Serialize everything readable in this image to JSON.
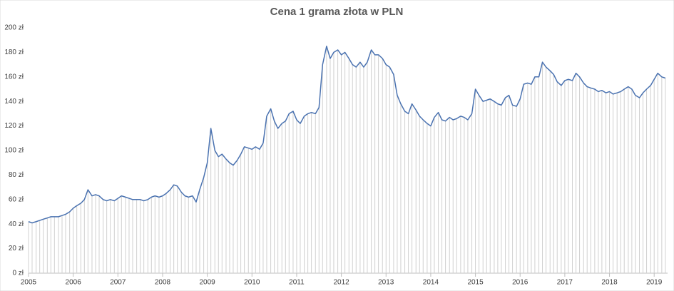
{
  "chart_data": {
    "type": "line",
    "title": "Cena 1 grama złota w PLN",
    "x": [
      2005,
      2005.08,
      2005.17,
      2005.25,
      2005.33,
      2005.42,
      2005.5,
      2005.58,
      2005.67,
      2005.75,
      2005.83,
      2005.92,
      2006,
      2006.08,
      2006.17,
      2006.25,
      2006.33,
      2006.42,
      2006.5,
      2006.58,
      2006.67,
      2006.75,
      2006.83,
      2006.92,
      2007,
      2007.08,
      2007.17,
      2007.25,
      2007.33,
      2007.42,
      2007.5,
      2007.58,
      2007.67,
      2007.75,
      2007.83,
      2007.92,
      2008,
      2008.08,
      2008.17,
      2008.25,
      2008.33,
      2008.42,
      2008.5,
      2008.58,
      2008.67,
      2008.75,
      2008.83,
      2008.92,
      2009,
      2009.08,
      2009.17,
      2009.25,
      2009.33,
      2009.42,
      2009.5,
      2009.58,
      2009.67,
      2009.75,
      2009.83,
      2009.92,
      2010,
      2010.08,
      2010.17,
      2010.25,
      2010.33,
      2010.42,
      2010.5,
      2010.58,
      2010.67,
      2010.75,
      2010.83,
      2010.92,
      2011,
      2011.08,
      2011.17,
      2011.25,
      2011.33,
      2011.42,
      2011.5,
      2011.58,
      2011.67,
      2011.75,
      2011.83,
      2011.92,
      2012,
      2012.08,
      2012.17,
      2012.25,
      2012.33,
      2012.42,
      2012.5,
      2012.58,
      2012.67,
      2012.75,
      2012.83,
      2012.92,
      2013,
      2013.08,
      2013.17,
      2013.25,
      2013.33,
      2013.42,
      2013.5,
      2013.58,
      2013.67,
      2013.75,
      2013.83,
      2013.92,
      2014,
      2014.08,
      2014.17,
      2014.25,
      2014.33,
      2014.42,
      2014.5,
      2014.58,
      2014.67,
      2014.75,
      2014.83,
      2014.92,
      2015,
      2015.08,
      2015.17,
      2015.25,
      2015.33,
      2015.42,
      2015.5,
      2015.58,
      2015.67,
      2015.75,
      2015.83,
      2015.92,
      2016,
      2016.08,
      2016.17,
      2016.25,
      2016.33,
      2016.42,
      2016.5,
      2016.58,
      2016.67,
      2016.75,
      2016.83,
      2016.92,
      2017,
      2017.08,
      2017.17,
      2017.25,
      2017.33,
      2017.42,
      2017.5,
      2017.58,
      2017.67,
      2017.75,
      2017.83,
      2017.92,
      2018,
      2018.08,
      2018.17,
      2018.25,
      2018.33,
      2018.42,
      2018.5,
      2018.58,
      2018.67,
      2018.75,
      2018.83,
      2018.92,
      2019,
      2019.08,
      2019.17,
      2019.25
    ],
    "values": [
      42,
      41,
      42,
      43,
      44,
      45,
      46,
      46,
      46,
      47,
      48,
      50,
      53,
      55,
      57,
      60,
      68,
      63,
      64,
      63,
      60,
      59,
      60,
      59,
      61,
      63,
      62,
      61,
      60,
      60,
      60,
      59,
      60,
      62,
      63,
      62,
      63,
      65,
      68,
      72,
      71,
      66,
      63,
      62,
      63,
      58,
      68,
      78,
      90,
      118,
      100,
      95,
      97,
      93,
      90,
      88,
      92,
      97,
      103,
      102,
      101,
      103,
      101,
      106,
      128,
      134,
      124,
      118,
      122,
      124,
      130,
      132,
      125,
      122,
      128,
      130,
      131,
      130,
      135,
      170,
      185,
      175,
      180,
      182,
      178,
      180,
      175,
      170,
      168,
      172,
      168,
      172,
      182,
      178,
      178,
      175,
      170,
      168,
      162,
      145,
      138,
      132,
      130,
      138,
      133,
      128,
      125,
      122,
      120,
      127,
      131,
      125,
      124,
      127,
      125,
      126,
      128,
      127,
      125,
      130,
      150,
      145,
      140,
      141,
      142,
      140,
      138,
      137,
      143,
      145,
      137,
      136,
      142,
      154,
      155,
      154,
      160,
      160,
      172,
      168,
      165,
      162,
      156,
      153,
      157,
      158,
      157,
      163,
      160,
      155,
      152,
      151,
      150,
      148,
      149,
      147,
      148,
      146,
      147,
      148,
      150,
      152,
      150,
      145,
      143,
      147,
      150,
      153,
      158,
      163,
      160,
      159
    ],
    "color": "#4a72b0",
    "drop_line_color": "#d0d0d0",
    "xlim": [
      2005,
      2019.3
    ],
    "xticks": [
      2005,
      2006,
      2007,
      2008,
      2009,
      2010,
      2011,
      2012,
      2013,
      2014,
      2015,
      2016,
      2017,
      2018,
      2019
    ],
    "ylim": [
      0,
      200
    ],
    "yticks": [
      {
        "value": 0,
        "label": "0 zł"
      },
      {
        "value": 20,
        "label": "20 zł"
      },
      {
        "value": 40,
        "label": "40 zł"
      },
      {
        "value": 60,
        "label": "60 zł"
      },
      {
        "value": 80,
        "label": "80 zł"
      },
      {
        "value": 100,
        "label": "100 zł"
      },
      {
        "value": 120,
        "label": "120 zł"
      },
      {
        "value": 140,
        "label": "140 zł"
      },
      {
        "value": 160,
        "label": "160 zł"
      },
      {
        "value": 180,
        "label": "180 zł"
      },
      {
        "value": 200,
        "label": "200 zł"
      }
    ]
  }
}
